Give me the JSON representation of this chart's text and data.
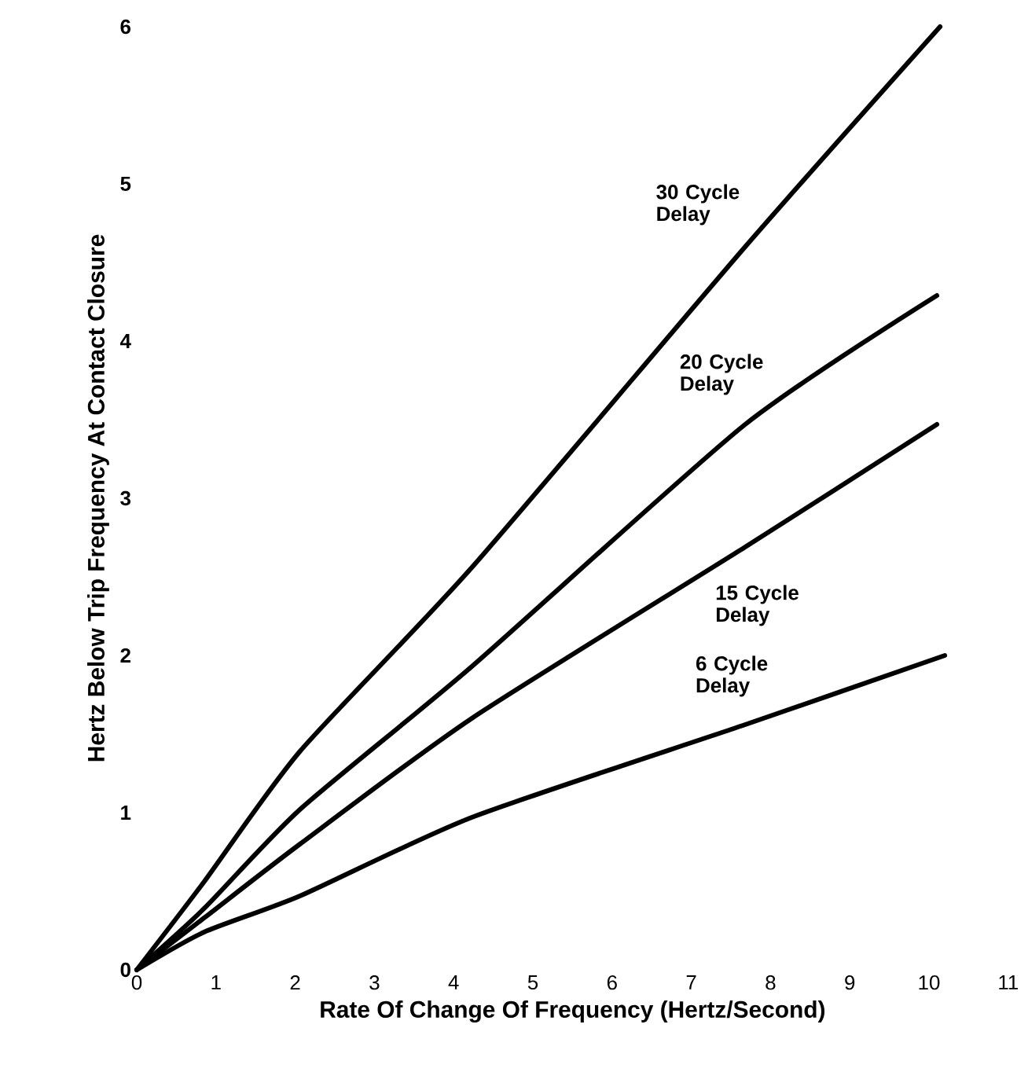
{
  "chart_data": {
    "type": "line",
    "xlabel": "Rate Of Change Of Frequency (Hertz/Second)",
    "ylabel": "Hertz Below Trip Frequency At Contact Closure",
    "xlim": [
      0,
      11
    ],
    "ylim": [
      0,
      6
    ],
    "xticks": [
      0,
      1,
      2,
      3,
      4,
      5,
      6,
      7,
      8,
      9,
      10,
      11
    ],
    "yticks": [
      0,
      1,
      2,
      3,
      4,
      5,
      6
    ],
    "series": [
      {
        "name": "30 Cycle Delay",
        "color": "#000000",
        "x": [
          0,
          0.85,
          2.06,
          4.23,
          7.68,
          10.14
        ],
        "values": [
          0,
          0.56,
          1.39,
          2.56,
          4.6,
          6.0
        ]
      },
      {
        "name": "20 Cycle Delay",
        "color": "#000000",
        "x": [
          0,
          0.85,
          2.06,
          4.23,
          7.68,
          10.1
        ],
        "values": [
          0,
          0.39,
          1.02,
          1.93,
          3.47,
          4.29
        ]
      },
      {
        "name": "15 Cycle Delay",
        "color": "#000000",
        "x": [
          0,
          0.85,
          2.06,
          4.23,
          7.68,
          10.1
        ],
        "values": [
          0,
          0.33,
          0.8,
          1.6,
          2.69,
          3.47
        ]
      },
      {
        "name": "6 Cycle Delay",
        "color": "#000000",
        "x": [
          0,
          0.85,
          2.06,
          4.23,
          7.68,
          10.2
        ],
        "values": [
          0,
          0.24,
          0.47,
          0.97,
          1.56,
          2.0
        ]
      }
    ]
  }
}
